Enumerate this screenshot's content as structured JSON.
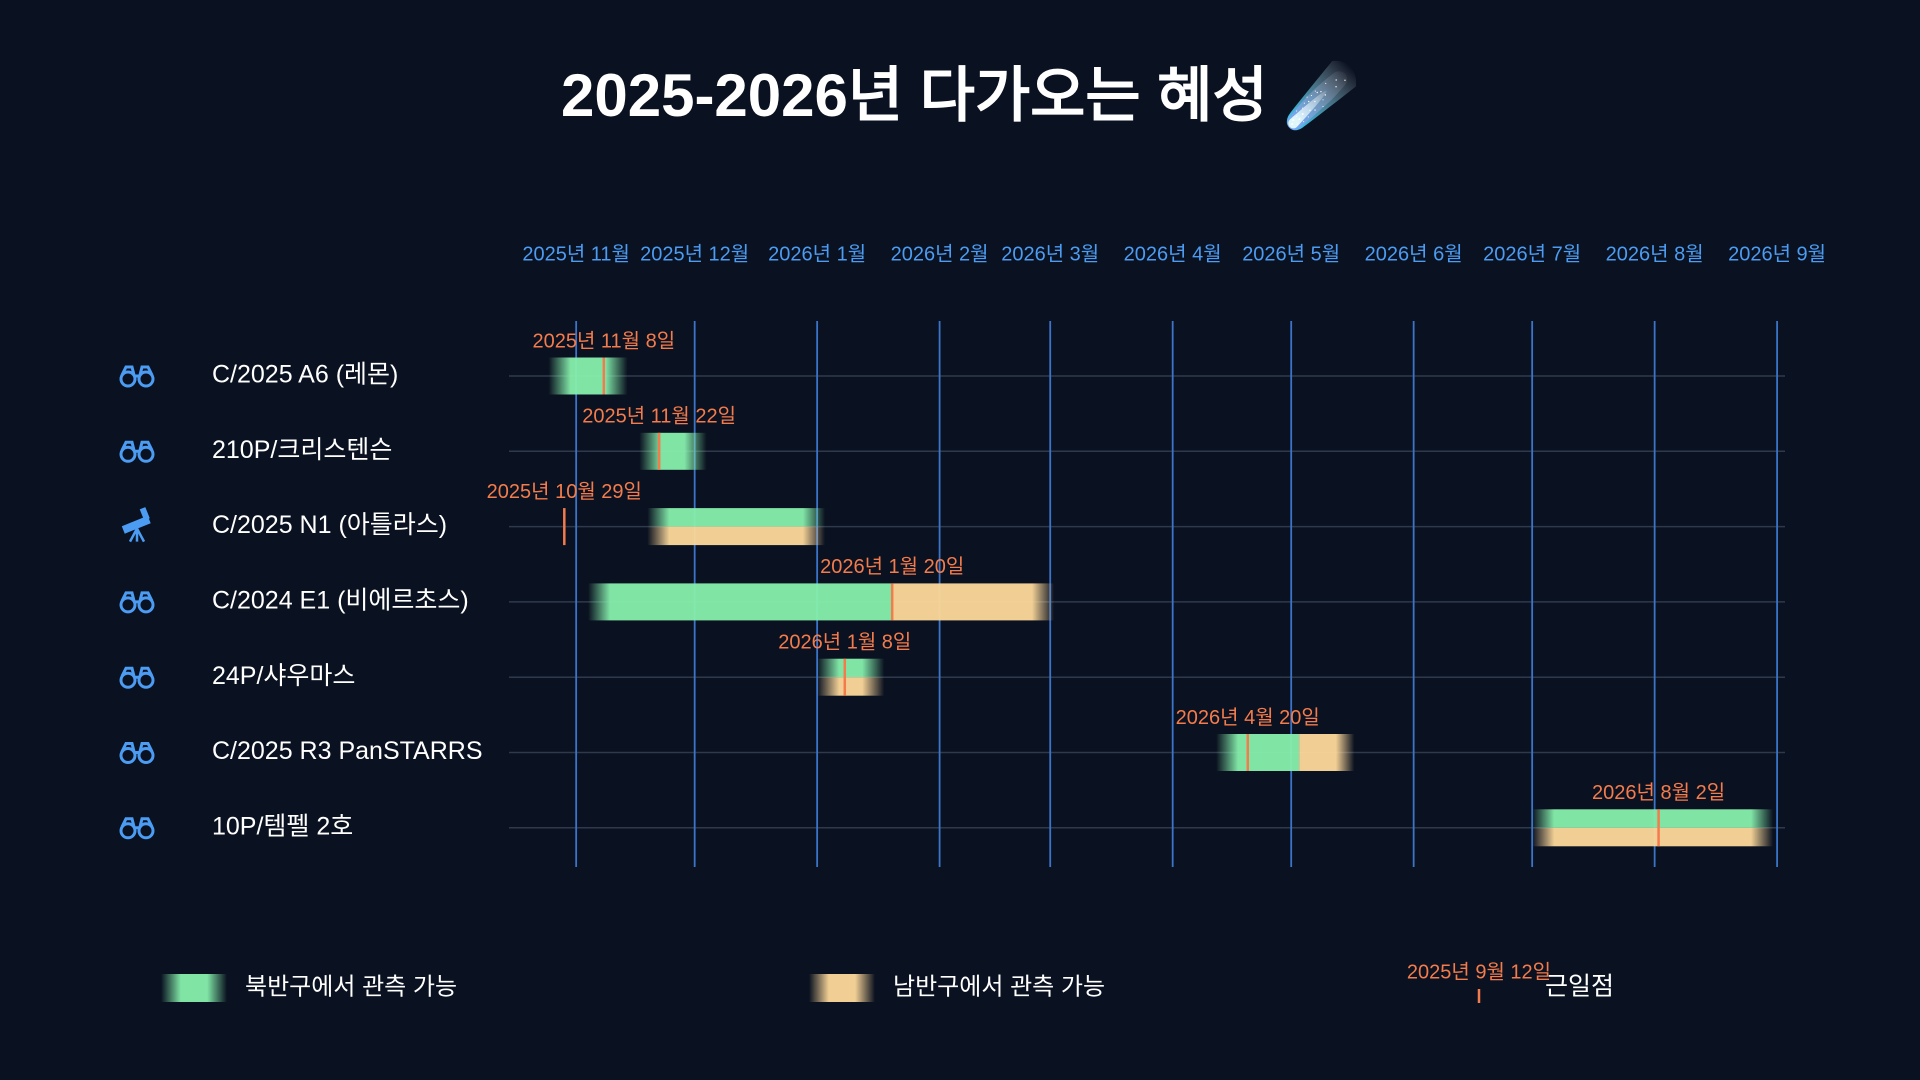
{
  "chart_data": {
    "type": "timeline",
    "title": "2025-2026년 다가오는 혜성 ☄️",
    "xlim": [
      "2025-10-15",
      "2026-09-03"
    ],
    "xticks": [
      {
        "value": "2025-11",
        "label": "2025년 11월"
      },
      {
        "value": "2025-12",
        "label": "2025년 12월"
      },
      {
        "value": "2026-01",
        "label": "2026년 1월"
      },
      {
        "value": "2026-02",
        "label": "2026년 2월"
      },
      {
        "value": "2026-03",
        "label": "2026년 3월"
      },
      {
        "value": "2026-04",
        "label": "2026년 4월"
      },
      {
        "value": "2026-05",
        "label": "2026년 5월"
      },
      {
        "value": "2026-06",
        "label": "2026년 6월"
      },
      {
        "value": "2026-07",
        "label": "2026년 7월"
      },
      {
        "value": "2026-08",
        "label": "2026년 8월"
      },
      {
        "value": "2026-09",
        "label": "2026년 9월"
      }
    ],
    "grid": true,
    "series": [
      {
        "name": "북반구에서 관측 가능",
        "color": "#86efac"
      },
      {
        "name": "남반구에서 관측 가능",
        "color": "#fcd89a"
      }
    ],
    "perihelion_legend": {
      "name": "근일점",
      "color": "#f47c4c",
      "example_label": "2025년 9월 12일"
    },
    "comets": [
      {
        "name": "C/2025 A6 (레몬)",
        "instrument": "binoculars",
        "north": [
          "2025-10-25",
          "2025-11-14"
        ],
        "south": null,
        "perihelion": "2025-11-08",
        "perihelion_label": "2025년 11월 8일"
      },
      {
        "name": "210P/크리스텐슨",
        "instrument": "binoculars",
        "north": [
          "2025-11-17",
          "2025-12-04"
        ],
        "south": null,
        "perihelion": "2025-11-22",
        "perihelion_label": "2025년 11월 22일"
      },
      {
        "name": "C/2025 N1 (아틀라스)",
        "instrument": "telescope",
        "north": [
          "2025-11-19",
          "2026-01-03"
        ],
        "south": [
          "2025-11-19",
          "2026-01-03"
        ],
        "perihelion": "2025-10-29",
        "perihelion_label": "2025년 10월 29일"
      },
      {
        "name": "C/2024 E1 (비에르초스)",
        "instrument": "binoculars",
        "north": [
          "2025-11-04",
          "2026-01-20"
        ],
        "south": [
          "2026-01-20",
          "2026-03-02"
        ],
        "perihelion": "2026-01-20",
        "perihelion_label": "2026년 1월 20일"
      },
      {
        "name": "24P/샤우마스",
        "instrument": "binoculars",
        "north": [
          "2026-01-01",
          "2026-01-18"
        ],
        "south": [
          "2026-01-01",
          "2026-01-18"
        ],
        "perihelion": "2026-01-08",
        "perihelion_label": "2026년 1월 8일"
      },
      {
        "name": "C/2025 R3 PanSTARRS",
        "instrument": "binoculars",
        "north": [
          "2026-04-12",
          "2026-05-03"
        ],
        "south": [
          "2026-05-03",
          "2026-05-17"
        ],
        "perihelion": "2026-04-20",
        "perihelion_label": "2026년 4월 20일"
      },
      {
        "name": "10P/템펠 2호",
        "instrument": "binoculars",
        "north": [
          "2026-07-01",
          "2026-08-31"
        ],
        "south": [
          "2026-07-01",
          "2026-08-31"
        ],
        "perihelion": "2026-08-02",
        "perihelion_label": "2026년 8월 2일"
      }
    ]
  }
}
